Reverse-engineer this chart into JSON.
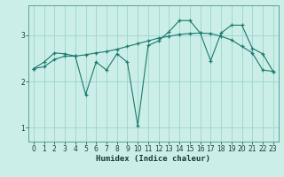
{
  "xlabel": "Humidex (Indice chaleur)",
  "background_color": "#cceee8",
  "grid_color": "#99d5cc",
  "line_color": "#1a7a6e",
  "xlim": [
    -0.5,
    23.5
  ],
  "ylim": [
    0.7,
    3.65
  ],
  "yticks": [
    1,
    2,
    3
  ],
  "xticks": [
    0,
    1,
    2,
    3,
    4,
    5,
    6,
    7,
    8,
    9,
    10,
    11,
    12,
    13,
    14,
    15,
    16,
    17,
    18,
    19,
    20,
    21,
    22,
    23
  ],
  "series1_x": [
    0,
    1,
    2,
    3,
    4,
    5,
    6,
    7,
    8,
    9,
    10,
    11,
    12,
    13,
    14,
    15,
    16,
    17,
    18,
    19,
    20,
    21,
    22,
    23
  ],
  "series1_y": [
    2.28,
    2.42,
    2.62,
    2.6,
    2.55,
    1.72,
    2.42,
    2.25,
    2.6,
    2.42,
    1.05,
    2.78,
    2.88,
    3.08,
    3.32,
    3.32,
    3.05,
    2.45,
    3.05,
    3.22,
    3.22,
    2.72,
    2.6,
    2.22
  ],
  "series2_x": [
    0,
    1,
    2,
    3,
    4,
    5,
    6,
    7,
    8,
    9,
    10,
    11,
    12,
    13,
    14,
    15,
    16,
    17,
    18,
    19,
    20,
    21,
    22,
    23
  ],
  "series2_y": [
    2.28,
    2.32,
    2.48,
    2.55,
    2.55,
    2.58,
    2.62,
    2.65,
    2.7,
    2.76,
    2.82,
    2.88,
    2.94,
    2.98,
    3.02,
    3.04,
    3.05,
    3.04,
    2.98,
    2.9,
    2.76,
    2.62,
    2.25,
    2.22
  ]
}
